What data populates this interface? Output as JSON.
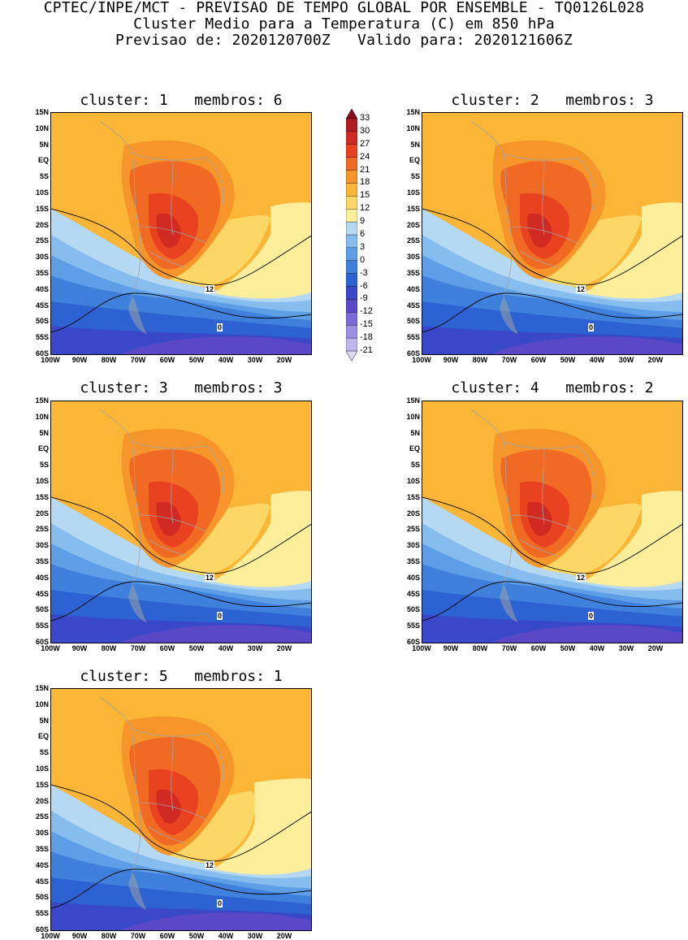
{
  "header": {
    "line1": "CPTEC/INPE/MCT - PREVISAO DE TEMPO GLOBAL POR ENSEMBLE - TQ0126L028",
    "line2": "Cluster Medio para a Temperatura (C) em 850 hPa",
    "line3": "Previsao de: 2020120700Z   Valido para: 2020121606Z"
  },
  "lat_labels": [
    "15N",
    "10N",
    "5N",
    "EQ",
    "5S",
    "10S",
    "15S",
    "20S",
    "25S",
    "30S",
    "35S",
    "40S",
    "45S",
    "50S",
    "55S",
    "60S"
  ],
  "lon_labels": [
    "100W",
    "90W",
    "80W",
    "70W",
    "60W",
    "50W",
    "40W",
    "30W",
    "20W"
  ],
  "contour_labels": {
    "warm": "12",
    "cold": "0"
  },
  "colorbar": {
    "levels": [
      "33",
      "30",
      "27",
      "24",
      "21",
      "18",
      "15",
      "12",
      "9",
      "6",
      "3",
      "0",
      "-3",
      "-6",
      "-9",
      "-12",
      "-15",
      "-18",
      "-21"
    ],
    "colors": [
      "#8e0a1e",
      "#b01e24",
      "#d12a22",
      "#e94220",
      "#f06a24",
      "#f6962a",
      "#fbb638",
      "#fdd766",
      "#fcee9a",
      "#b5d8f3",
      "#86bdee",
      "#5d9ee6",
      "#3f80dc",
      "#2c62d1",
      "#3848c8",
      "#5a48c8",
      "#7d6ad6",
      "#9e8fe2",
      "#c0b6ee",
      "#e0dcf6"
    ]
  },
  "panels": [
    {
      "title": "cluster: 1   membros: 6"
    },
    {
      "title": "cluster: 2   membros: 3"
    },
    {
      "title": "cluster: 3   membros: 3"
    },
    {
      "title": "cluster: 4   membros: 2"
    },
    {
      "title": "cluster: 5   membros: 1"
    }
  ]
}
